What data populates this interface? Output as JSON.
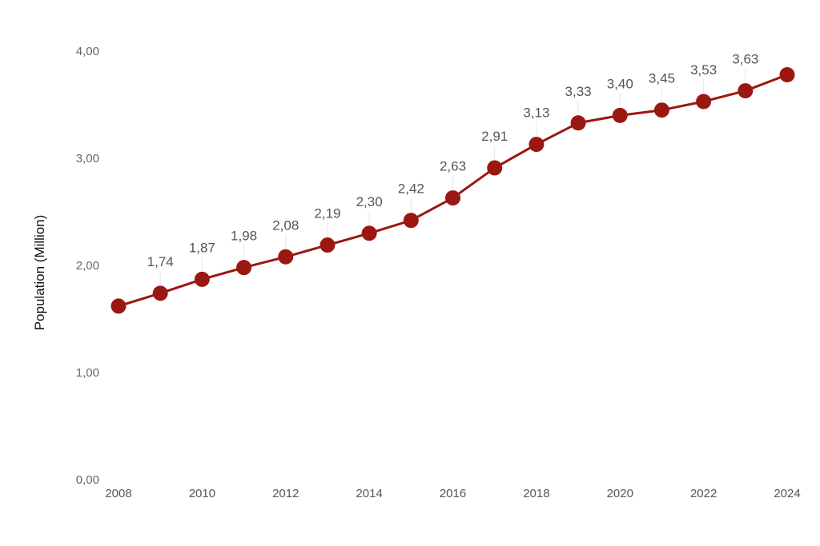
{
  "chart_data": {
    "type": "line",
    "title": "",
    "xlabel": "",
    "ylabel": "Population (Million)",
    "x": [
      2008,
      2009,
      2010,
      2011,
      2012,
      2013,
      2014,
      2015,
      2016,
      2017,
      2018,
      2019,
      2020,
      2021,
      2022,
      2023,
      2024
    ],
    "series": [
      {
        "values": [
          1.62,
          1.74,
          1.87,
          1.98,
          2.08,
          2.19,
          2.3,
          2.42,
          2.63,
          2.91,
          3.13,
          3.33,
          3.4,
          3.45,
          3.53,
          3.63,
          3.78
        ],
        "data_labels": [
          "",
          "1,74",
          "1,87",
          "1,98",
          "2,08",
          "2,19",
          "2,30",
          "2,42",
          "2,63",
          "2,91",
          "3,13",
          "3,33",
          "3,40",
          "3,45",
          "3,53",
          "3,63",
          ""
        ]
      }
    ],
    "x_tick_labels": [
      "2008",
      "2010",
      "2012",
      "2014",
      "2016",
      "2018",
      "2020",
      "2022",
      "2024"
    ],
    "y_ticks": [
      0,
      1,
      2,
      3,
      4
    ],
    "y_tick_labels": [
      "0,00",
      "1,00",
      "2,00",
      "3,00",
      "4,00"
    ],
    "ylim": [
      0,
      4
    ],
    "grid": false,
    "legend": "none",
    "colors": {
      "line": "#9b1712",
      "marker": "#9b1712"
    }
  }
}
